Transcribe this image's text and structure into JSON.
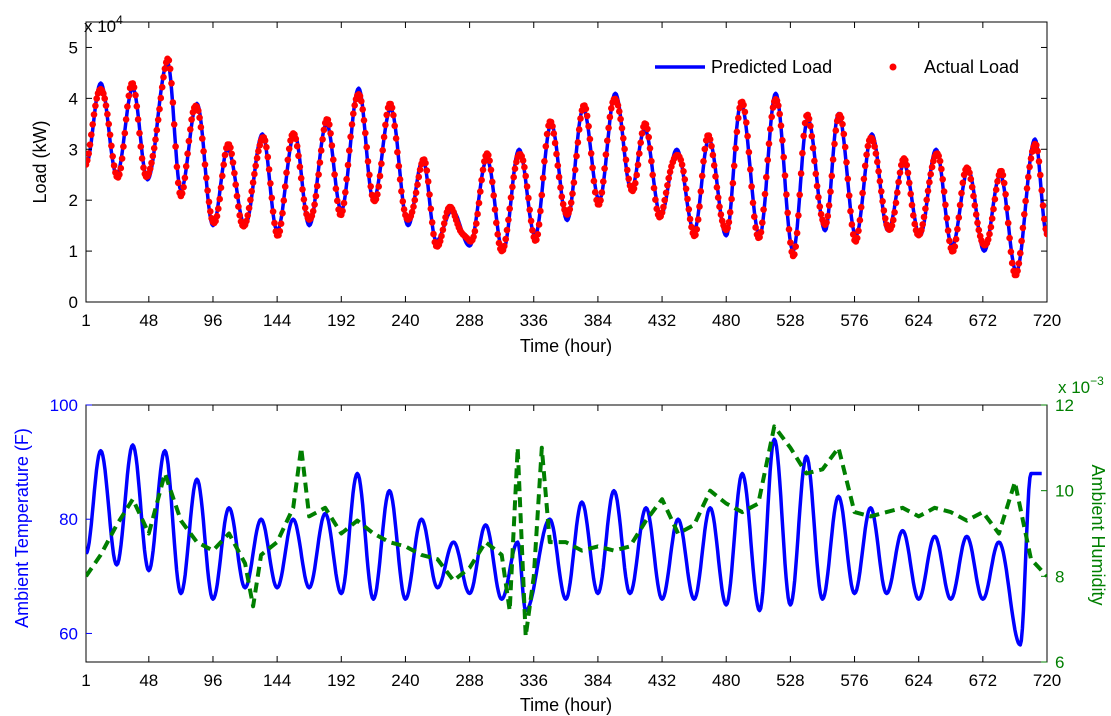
{
  "chart_data": [
    {
      "type": "line",
      "xlabel": "Time (hour)",
      "ylabel": "Load (kW)",
      "y_multiplier": "x 10",
      "y_multiplier_exp": "4",
      "xlim": [
        1,
        720
      ],
      "ylim": [
        0,
        5.5
      ],
      "xticks": [
        1,
        48,
        96,
        144,
        192,
        240,
        288,
        336,
        384,
        432,
        480,
        528,
        576,
        624,
        672,
        720
      ],
      "yticks": [
        0,
        1,
        2,
        3,
        4,
        5
      ],
      "legend_position": "top-right",
      "series": [
        {
          "name": "Predicted Load",
          "style": "line",
          "color": "#0000ff",
          "peaks": [
            [
              12,
              4.3
            ],
            [
              36,
              4.2
            ],
            [
              62,
              4.7
            ],
            [
              84,
              3.9
            ],
            [
              107,
              3.0
            ],
            [
              133,
              3.3
            ],
            [
              157,
              3.3
            ],
            [
              181,
              3.5
            ],
            [
              205,
              4.2
            ],
            [
              229,
              3.8
            ],
            [
              253,
              2.8
            ],
            [
              275,
              1.8
            ],
            [
              301,
              2.8
            ],
            [
              325,
              3.0
            ],
            [
              349,
              3.5
            ],
            [
              373,
              3.8
            ],
            [
              397,
              4.1
            ],
            [
              419,
              3.4
            ],
            [
              443,
              3.0
            ],
            [
              467,
              3.2
            ],
            [
              491,
              3.9
            ],
            [
              517,
              4.1
            ],
            [
              541,
              3.6
            ],
            [
              564,
              3.7
            ],
            [
              589,
              3.3
            ],
            [
              613,
              2.7
            ],
            [
              637,
              3.0
            ],
            [
              661,
              2.6
            ],
            [
              685,
              2.5
            ],
            [
              711,
              3.2
            ]
          ],
          "troughs": [
            [
              1,
              2.7
            ],
            [
              24,
              2.5
            ],
            [
              47,
              2.4
            ],
            [
              72,
              2.2
            ],
            [
              96,
              1.5
            ],
            [
              120,
              1.5
            ],
            [
              144,
              1.4
            ],
            [
              168,
              1.5
            ],
            [
              192,
              1.8
            ],
            [
              216,
              2.0
            ],
            [
              242,
              1.5
            ],
            [
              263,
              1.2
            ],
            [
              288,
              1.1
            ],
            [
              313,
              1.0
            ],
            [
              337,
              1.3
            ],
            [
              361,
              1.6
            ],
            [
              385,
              2.0
            ],
            [
              409,
              2.2
            ],
            [
              431,
              1.7
            ],
            [
              456,
              1.4
            ],
            [
              480,
              1.3
            ],
            [
              505,
              1.3
            ],
            [
              530,
              1.0
            ],
            [
              554,
              1.4
            ],
            [
              577,
              1.3
            ],
            [
              601,
              1.4
            ],
            [
              625,
              1.3
            ],
            [
              649,
              1.1
            ],
            [
              673,
              1.0
            ],
            [
              697,
              0.6
            ],
            [
              720,
              1.3
            ]
          ]
        },
        {
          "name": "Actual Load",
          "style": "points",
          "color": "#ff0000"
        }
      ]
    },
    {
      "type": "line",
      "xlabel": "Time (hour)",
      "ylabel": "Ambient Temperature (F)",
      "ylabel_right": "Ambient Humidity",
      "y2_multiplier": "x 10",
      "y2_multiplier_exp": "−3",
      "xlim": [
        1,
        720
      ],
      "ylim": [
        55,
        100
      ],
      "y2lim": [
        6,
        12
      ],
      "xticks": [
        1,
        48,
        96,
        144,
        192,
        240,
        288,
        336,
        384,
        432,
        480,
        528,
        576,
        624,
        672,
        720
      ],
      "yticks": [
        60,
        80,
        100
      ],
      "y2ticks": [
        6,
        8,
        10,
        12
      ],
      "series": [
        {
          "name": "Ambient Temperature",
          "axis": "left",
          "style": "line",
          "color": "#0000ff",
          "peaks": [
            [
              12,
              92
            ],
            [
              36,
              93
            ],
            [
              60,
              92
            ],
            [
              84,
              87
            ],
            [
              108,
              82
            ],
            [
              132,
              80
            ],
            [
              156,
              80
            ],
            [
              180,
              81
            ],
            [
              204,
              88
            ],
            [
              228,
              85
            ],
            [
              252,
              80
            ],
            [
              276,
              76
            ],
            [
              300,
              79
            ],
            [
              324,
              76
            ],
            [
              348,
              80
            ],
            [
              372,
              83
            ],
            [
              396,
              85
            ],
            [
              420,
              82
            ],
            [
              444,
              80
            ],
            [
              468,
              82
            ],
            [
              492,
              88
            ],
            [
              516,
              94
            ],
            [
              540,
              91
            ],
            [
              564,
              84
            ],
            [
              588,
              82
            ],
            [
              612,
              78
            ],
            [
              636,
              77
            ],
            [
              660,
              77
            ],
            [
              684,
              76
            ],
            [
              708,
              88
            ],
            [
              716,
              88
            ]
          ],
          "troughs": [
            [
              1,
              74
            ],
            [
              24,
              72
            ],
            [
              48,
              71
            ],
            [
              72,
              67
            ],
            [
              96,
              66
            ],
            [
              120,
              68
            ],
            [
              144,
              68
            ],
            [
              168,
              68
            ],
            [
              192,
              67
            ],
            [
              216,
              66
            ],
            [
              240,
              66
            ],
            [
              264,
              68
            ],
            [
              288,
              67
            ],
            [
              312,
              66
            ],
            [
              330,
              64
            ],
            [
              360,
              66
            ],
            [
              384,
              67
            ],
            [
              408,
              67
            ],
            [
              432,
              66
            ],
            [
              456,
              66
            ],
            [
              480,
              65
            ],
            [
              505,
              64
            ],
            [
              528,
              65
            ],
            [
              552,
              66
            ],
            [
              576,
              67
            ],
            [
              600,
              67
            ],
            [
              624,
              66
            ],
            [
              648,
              66
            ],
            [
              672,
              66
            ],
            [
              700,
              58
            ]
          ]
        },
        {
          "name": "Ambient Humidity",
          "axis": "right",
          "style": "dashed",
          "color": "#007f00",
          "points": [
            [
              1,
              8.0
            ],
            [
              12,
              8.5
            ],
            [
              24,
              9.2
            ],
            [
              36,
              9.8
            ],
            [
              48,
              9.0
            ],
            [
              60,
              10.4
            ],
            [
              72,
              9.3
            ],
            [
              84,
              8.8
            ],
            [
              96,
              8.6
            ],
            [
              108,
              9.0
            ],
            [
              120,
              8.3
            ],
            [
              126,
              7.3
            ],
            [
              132,
              8.5
            ],
            [
              144,
              8.8
            ],
            [
              156,
              9.6
            ],
            [
              162,
              11.0
            ],
            [
              168,
              9.4
            ],
            [
              180,
              9.6
            ],
            [
              192,
              9.0
            ],
            [
              204,
              9.3
            ],
            [
              216,
              9.0
            ],
            [
              228,
              8.8
            ],
            [
              240,
              8.7
            ],
            [
              252,
              8.5
            ],
            [
              264,
              8.4
            ],
            [
              276,
              7.9
            ],
            [
              288,
              8.2
            ],
            [
              300,
              8.8
            ],
            [
              312,
              8.5
            ],
            [
              318,
              7.2
            ],
            [
              324,
              11.0
            ],
            [
              330,
              6.6
            ],
            [
              336,
              8.0
            ],
            [
              342,
              11.0
            ],
            [
              348,
              8.8
            ],
            [
              360,
              8.8
            ],
            [
              372,
              8.6
            ],
            [
              384,
              8.7
            ],
            [
              396,
              8.6
            ],
            [
              408,
              8.7
            ],
            [
              420,
              9.3
            ],
            [
              432,
              9.8
            ],
            [
              444,
              9.0
            ],
            [
              456,
              9.2
            ],
            [
              468,
              10.0
            ],
            [
              480,
              9.7
            ],
            [
              492,
              9.5
            ],
            [
              504,
              9.7
            ],
            [
              516,
              11.5
            ],
            [
              528,
              11.0
            ],
            [
              540,
              10.4
            ],
            [
              552,
              10.5
            ],
            [
              564,
              11.0
            ],
            [
              576,
              9.5
            ],
            [
              588,
              9.4
            ],
            [
              600,
              9.5
            ],
            [
              612,
              9.6
            ],
            [
              624,
              9.4
            ],
            [
              636,
              9.6
            ],
            [
              648,
              9.5
            ],
            [
              660,
              9.3
            ],
            [
              672,
              9.5
            ],
            [
              684,
              9.0
            ],
            [
              696,
              10.2
            ],
            [
              708,
              8.4
            ],
            [
              720,
              8.0
            ]
          ]
        }
      ]
    }
  ]
}
